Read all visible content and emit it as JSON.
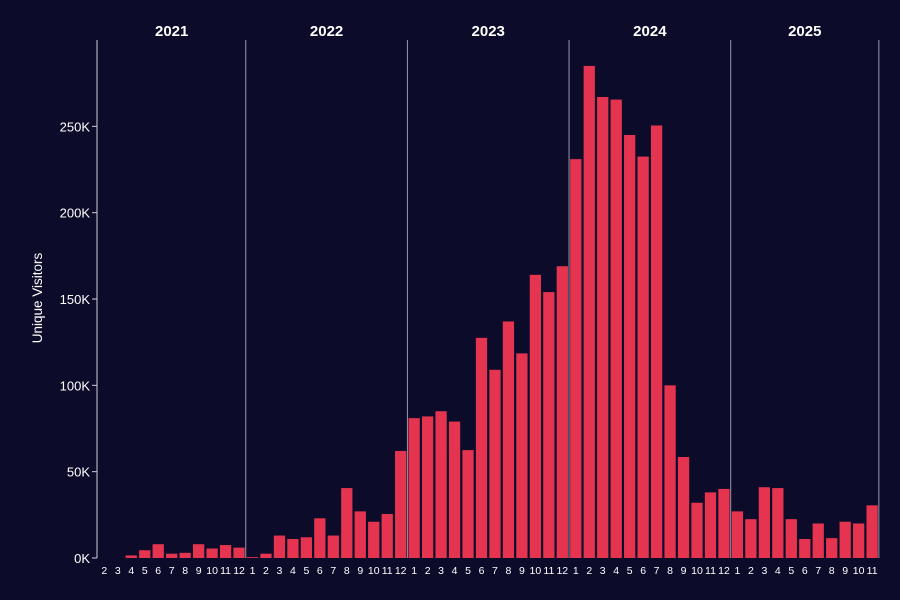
{
  "chart_data": {
    "type": "bar",
    "title": "",
    "xlabel": "",
    "ylabel": "Unique Visitors",
    "ylim": [
      0,
      300000
    ],
    "y_ticks": [
      {
        "value": 0,
        "label": "0K"
      },
      {
        "value": 50000,
        "label": "50K"
      },
      {
        "value": 100000,
        "label": "100K"
      },
      {
        "value": 150000,
        "label": "150K"
      },
      {
        "value": 200000,
        "label": "200K"
      },
      {
        "value": 250000,
        "label": "250K"
      }
    ],
    "grid": false,
    "bar_color": "#e5344f",
    "background_color": "#0c0b2a",
    "panels": [
      {
        "year": "2021",
        "categories": [
          "2",
          "3",
          "4",
          "5",
          "6",
          "7",
          "8",
          "9",
          "10",
          "11",
          "12"
        ],
        "values": [
          0,
          0,
          1500,
          4500,
          8000,
          2500,
          3000,
          8000,
          5500,
          7500,
          6000
        ]
      },
      {
        "year": "2022",
        "categories": [
          "1",
          "2",
          "3",
          "4",
          "5",
          "6",
          "7",
          "8",
          "9",
          "10",
          "11",
          "12"
        ],
        "values": [
          500,
          2500,
          13000,
          11000,
          12000,
          23000,
          13000,
          40500,
          27000,
          21000,
          25500,
          62000
        ]
      },
      {
        "year": "2023",
        "categories": [
          "1",
          "2",
          "3",
          "4",
          "5",
          "6",
          "7",
          "8",
          "9",
          "10",
          "11",
          "12"
        ],
        "values": [
          81000,
          82000,
          85000,
          79000,
          62500,
          127500,
          109000,
          137000,
          118500,
          164000,
          154000,
          169000
        ]
      },
      {
        "year": "2024",
        "categories": [
          "1",
          "2",
          "3",
          "4",
          "5",
          "6",
          "7",
          "8",
          "9",
          "10",
          "11",
          "12"
        ],
        "values": [
          231000,
          285000,
          267000,
          265500,
          245000,
          232500,
          250500,
          100000,
          58500,
          32000,
          38000,
          40000
        ]
      },
      {
        "year": "2025",
        "categories": [
          "1",
          "2",
          "3",
          "4",
          "5",
          "6",
          "7",
          "8",
          "9",
          "10",
          "11"
        ],
        "values": [
          27000,
          22500,
          41000,
          40500,
          22500,
          11000,
          20000,
          11500,
          21000,
          20000,
          30500
        ]
      }
    ]
  }
}
